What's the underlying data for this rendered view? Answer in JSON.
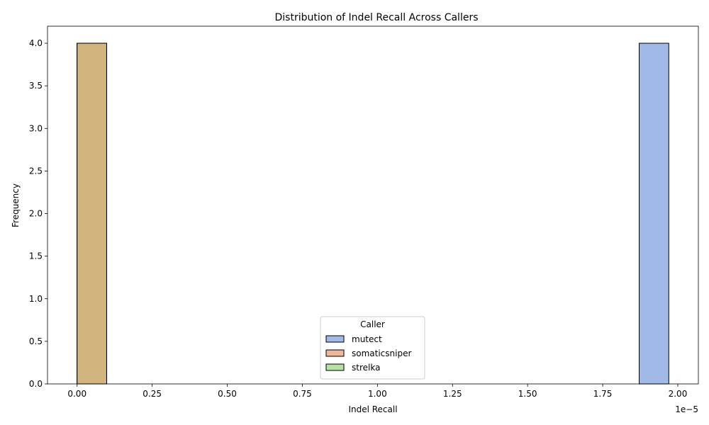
{
  "chart_data": {
    "type": "bar",
    "title": "Distribution of Indel Recall Across Callers",
    "xlabel": "Indel Recall",
    "ylabel": "Frequency",
    "x_offset_text": "1e−5",
    "xlim": [
      -0.0985,
      2.0685
    ],
    "ylim": [
      0,
      4.2
    ],
    "x_ticks": [
      0.0,
      0.25,
      0.5,
      0.75,
      1.0,
      1.25,
      1.5,
      1.75,
      2.0
    ],
    "x_tick_labels": [
      "0.00",
      "0.25",
      "0.50",
      "0.75",
      "1.00",
      "1.25",
      "1.50",
      "1.75",
      "2.00"
    ],
    "y_ticks": [
      0,
      0.5,
      1.0,
      1.5,
      2.0,
      2.5,
      3.0,
      3.5,
      4.0
    ],
    "y_tick_labels": [
      "0.0",
      "0.5",
      "1.0",
      "1.5",
      "2.0",
      "2.5",
      "3.0",
      "3.5",
      "4.0"
    ],
    "bin_edges": [
      0.0,
      0.0985,
      0.197,
      0.2955,
      0.394,
      0.4925,
      0.591,
      0.6895,
      0.788,
      0.8865,
      0.985,
      1.0835,
      1.182,
      1.2805,
      1.379,
      1.4775,
      1.576,
      1.6745,
      1.773,
      1.8715,
      1.97
    ],
    "legend": {
      "title": "Caller",
      "placement": "lower center"
    },
    "series": [
      {
        "name": "mutect",
        "color": "#a1b9e6",
        "values": [
          0,
          0,
          0,
          0,
          0,
          0,
          0,
          0,
          0,
          0,
          0,
          0,
          0,
          0,
          0,
          0,
          0,
          0,
          0,
          4
        ]
      },
      {
        "name": "somaticsniper",
        "color": "#f2b69a",
        "values": [
          4,
          0,
          0,
          0,
          0,
          0,
          0,
          0,
          0,
          0,
          0,
          0,
          0,
          0,
          0,
          0,
          0,
          0,
          0,
          0
        ]
      },
      {
        "name": "strelka",
        "color": "#b6e2a8",
        "values": [
          4,
          0,
          0,
          0,
          0,
          0,
          0,
          0,
          0,
          0,
          0,
          0,
          0,
          0,
          0,
          0,
          0,
          0,
          0,
          0
        ]
      }
    ],
    "overlap_fill_color": "#d2b47e"
  }
}
